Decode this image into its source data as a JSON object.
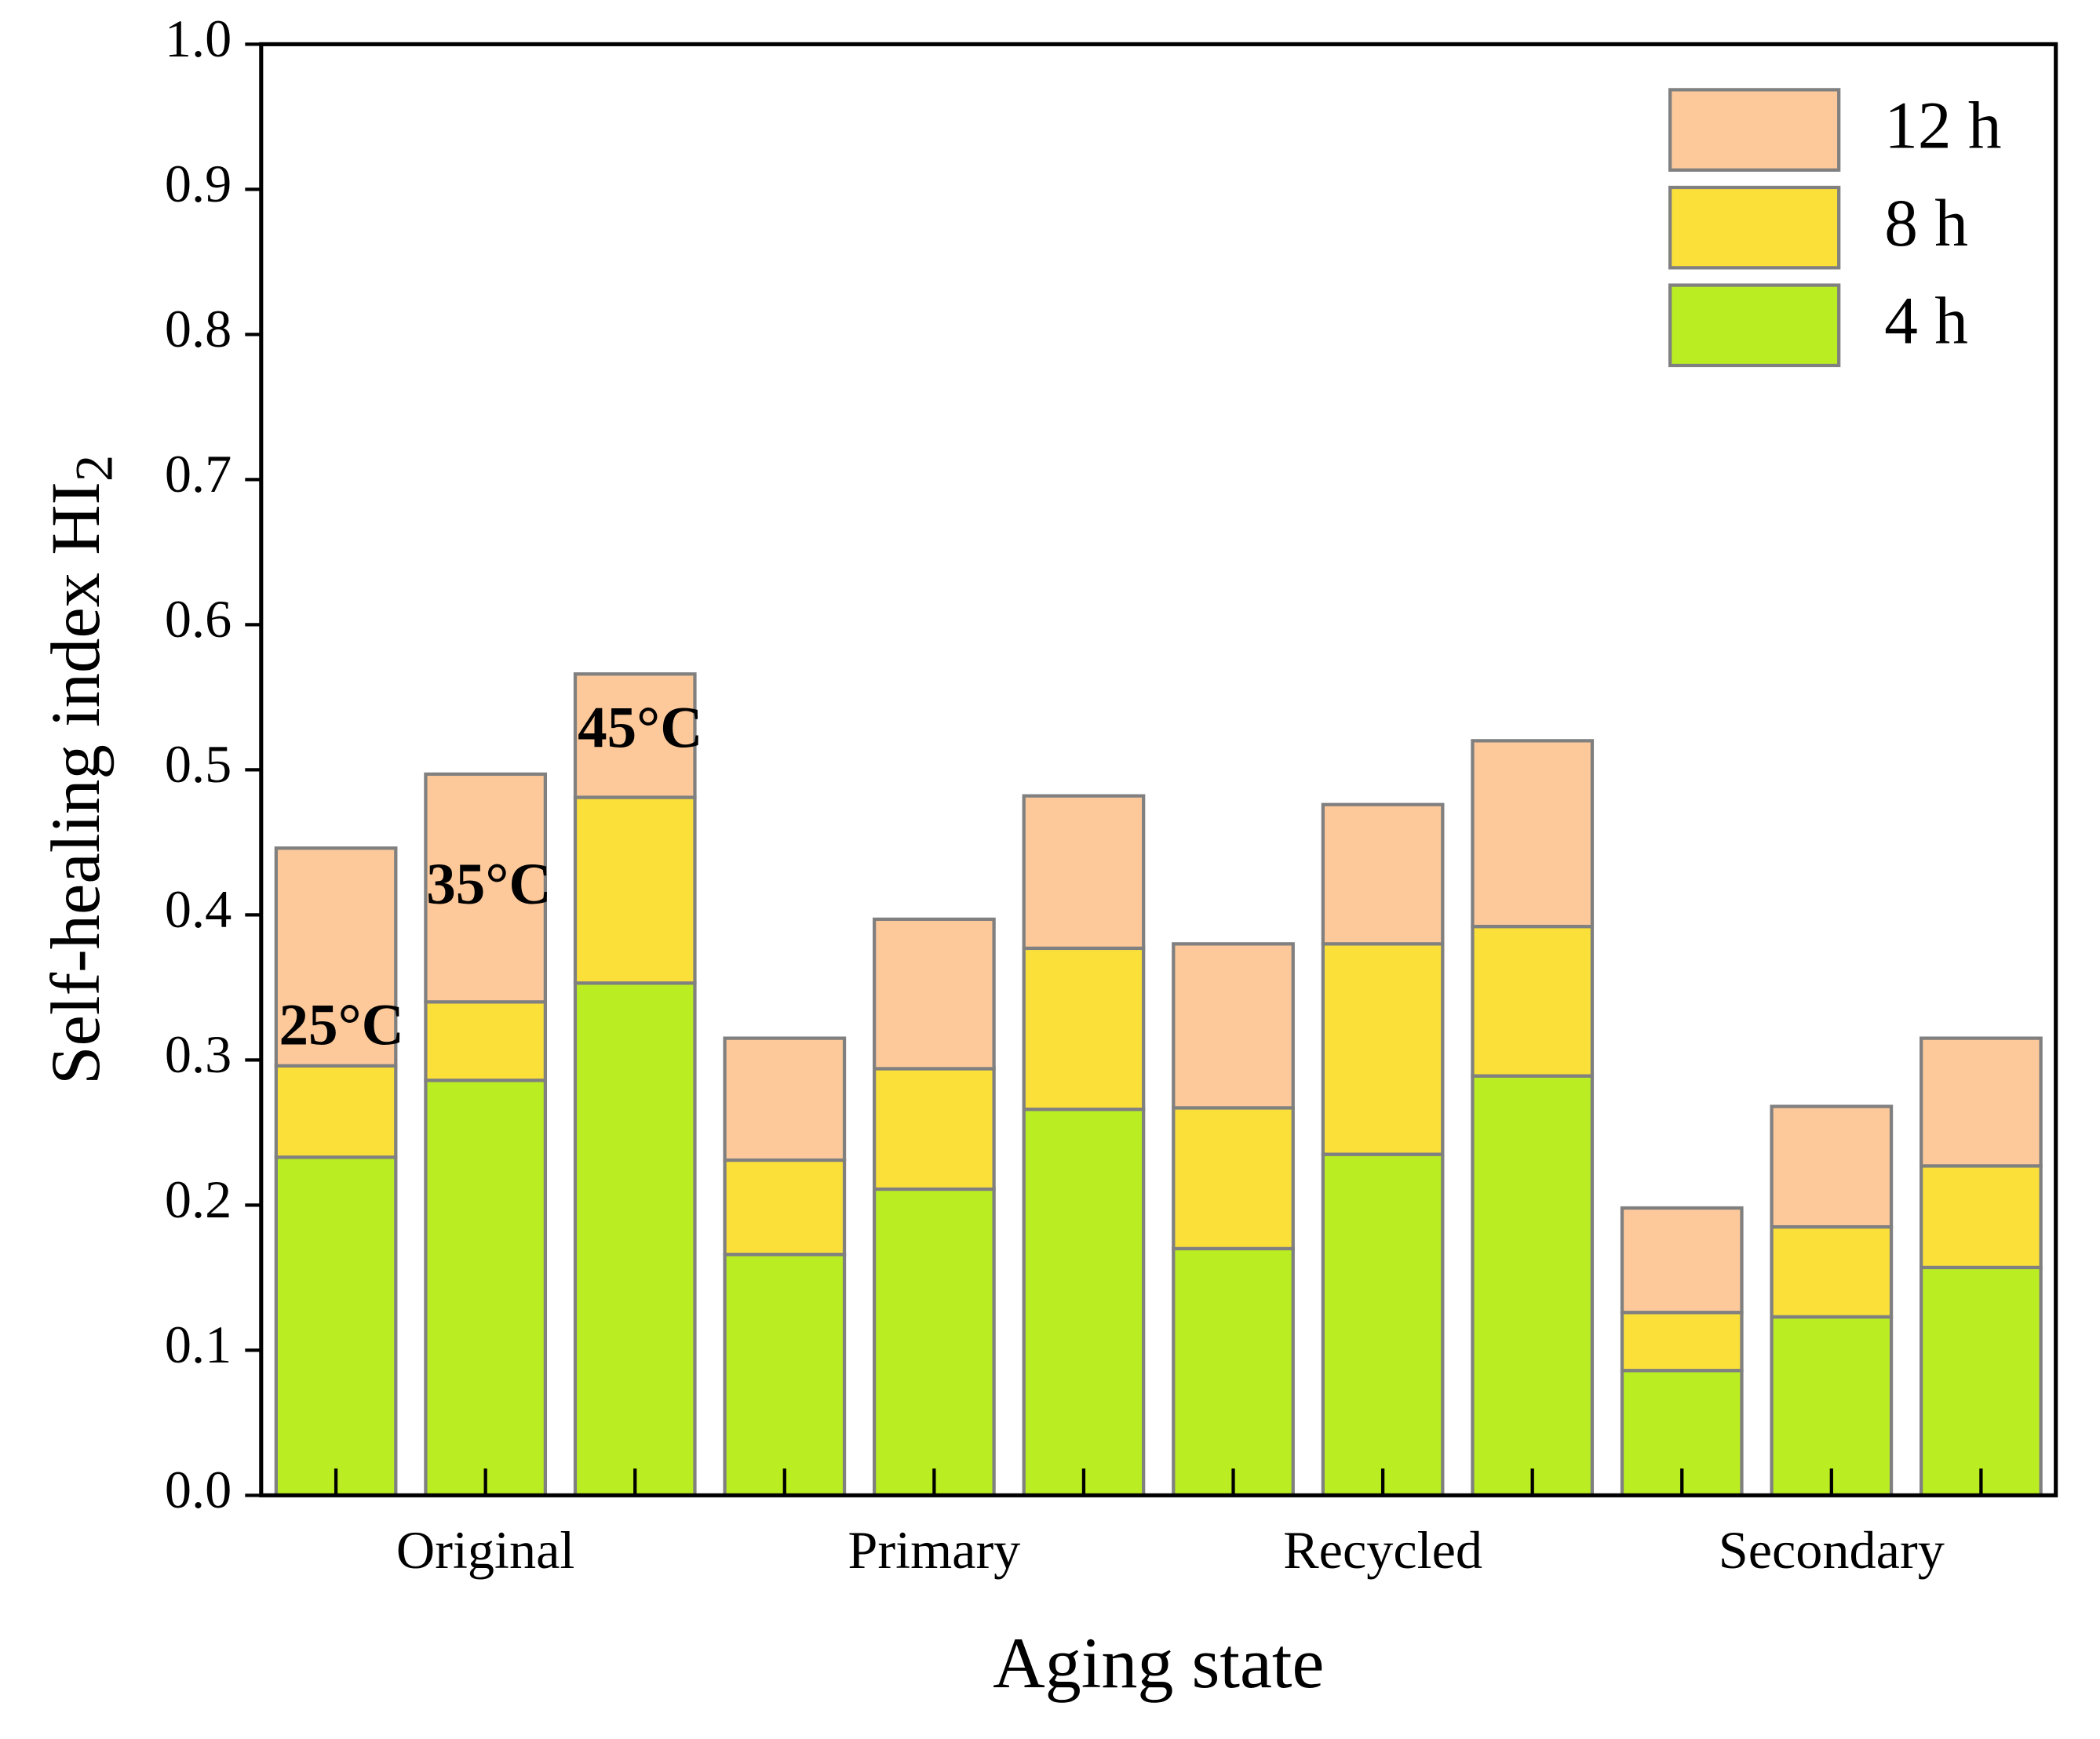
{
  "chart_data": {
    "type": "stacked_bar",
    "xlabel": "Aging state",
    "ylabel": "Self-healing index HI",
    "ylabel_subscript": "2",
    "categories": [
      null,
      "Original",
      null,
      null,
      "Primary",
      null,
      null,
      "Recycled",
      null,
      null,
      "Secondary",
      null
    ],
    "series": [
      {
        "name": "4 h",
        "color": "#bbee22",
        "values": [
          0.233,
          0.286,
          0.353,
          0.166,
          0.211,
          0.266,
          0.17,
          0.235,
          0.289,
          0.086,
          0.123,
          0.157
        ]
      },
      {
        "name": "8 h",
        "color": "#fbe03a",
        "values": [
          0.063,
          0.054,
          0.128,
          0.065,
          0.083,
          0.111,
          0.097,
          0.145,
          0.103,
          0.04,
          0.062,
          0.07
        ]
      },
      {
        "name": "12 h",
        "color": "#fdc99b",
        "values": [
          0.15,
          0.157,
          0.085,
          0.084,
          0.103,
          0.105,
          0.113,
          0.096,
          0.128,
          0.072,
          0.083,
          0.088
        ]
      }
    ],
    "annotations": [
      "25°C",
      "35°C",
      "45°C"
    ],
    "ylim": [
      0,
      1
    ],
    "yticks": [
      {
        "value": 0,
        "label": "0.0"
      },
      0.1,
      0.2,
      0.3,
      0.4,
      0.5,
      0.6,
      0.7,
      0.8,
      0.9,
      {
        "value": 1,
        "label": "1.0"
      }
    ],
    "legend": "top-right",
    "edge_color": "#808080"
  }
}
